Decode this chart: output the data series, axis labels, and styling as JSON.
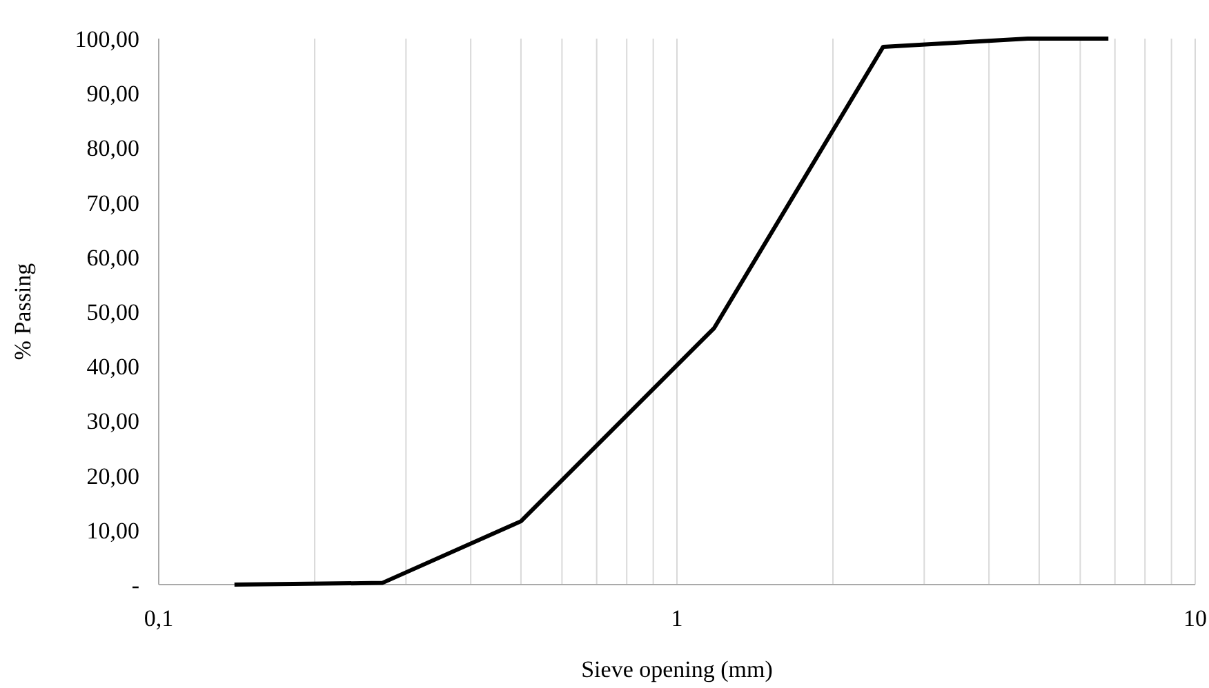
{
  "chart_data": {
    "type": "line",
    "xlabel": "Sieve opening (mm)",
    "ylabel": "% Passing",
    "log": "x",
    "grid": "x",
    "marker": "none",
    "line_style": "solid",
    "x": [
      0.14,
      0.27,
      0.5,
      1.18,
      2.5,
      4.75,
      6.8
    ],
    "series": [
      {
        "color": "#000000",
        "values": [
          0,
          0.3,
          11.6,
          47,
          98.5,
          100,
          100
        ]
      }
    ],
    "xlim": [
      0.1,
      10
    ],
    "xticks": [
      {
        "value": 0.1,
        "label": "0,1"
      },
      {
        "value": 0.2,
        "label": null
      },
      {
        "value": 0.3,
        "label": null
      },
      {
        "value": 0.4,
        "label": null
      },
      {
        "value": 0.5,
        "label": null
      },
      {
        "value": 0.6,
        "label": null
      },
      {
        "value": 0.7,
        "label": null
      },
      {
        "value": 0.8,
        "label": null
      },
      {
        "value": 0.9,
        "label": null
      },
      1,
      {
        "value": 2,
        "label": null
      },
      {
        "value": 3,
        "label": null
      },
      {
        "value": 4,
        "label": null
      },
      {
        "value": 5,
        "label": null
      },
      {
        "value": 6,
        "label": null
      },
      {
        "value": 7,
        "label": null
      },
      {
        "value": 8,
        "label": null
      },
      {
        "value": 9,
        "label": null
      },
      10
    ],
    "ylim": [
      0,
      100
    ],
    "yticks": [
      {
        "value": 0,
        "label": "-"
      },
      {
        "value": 10,
        "label": "10,00"
      },
      {
        "value": 20,
        "label": "20,00"
      },
      {
        "value": 30,
        "label": "30,00"
      },
      {
        "value": 40,
        "label": "40,00"
      },
      {
        "value": 50,
        "label": "50,00"
      },
      {
        "value": 60,
        "label": "60,00"
      },
      {
        "value": 70,
        "label": "70,00"
      },
      {
        "value": 80,
        "label": "80,00"
      },
      {
        "value": 90,
        "label": "90,00"
      },
      {
        "value": 100,
        "label": "100,00"
      }
    ]
  }
}
